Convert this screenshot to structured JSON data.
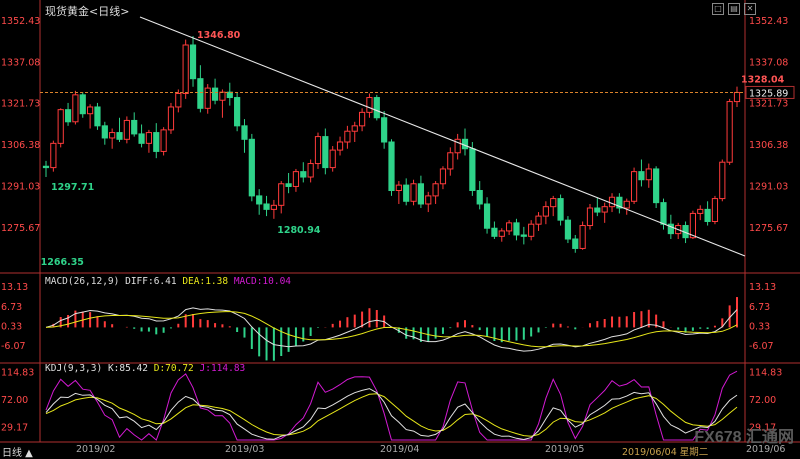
{
  "header": {
    "title": "现货黄金<日线>"
  },
  "colors": {
    "up": "#ff3b3b",
    "down": "#2fd38a",
    "axis": "#ff4a4a",
    "trend": "#e8e8e8",
    "dash": "#d9822b",
    "diff": "#e0e0e0",
    "dea": "#e6e61a",
    "j": "#d21ad2"
  },
  "chart_data": {
    "type": "candlestick",
    "y_ticks": [
      "1352.43",
      "1337.08",
      "1321.73",
      "1306.38",
      "1291.03",
      "1275.67"
    ],
    "ylim": [
      1260.0,
      1355.0
    ],
    "x_labels": [
      "2019/02",
      "2019/03",
      "2019/04",
      "2019/05"
    ],
    "annotations": {
      "high": "1346.80",
      "low_left": "1297.71",
      "low_mid": "1280.94",
      "low_right": "1266.35",
      "last_high": "1328.04",
      "current": "1325.89"
    },
    "candles": [
      [
        1298.5,
        1300.5,
        1294.5,
        1298.0
      ],
      [
        1298.0,
        1308.0,
        1296.5,
        1307.0
      ],
      [
        1307.0,
        1320.0,
        1305.5,
        1319.5
      ],
      [
        1319.5,
        1322.0,
        1313.5,
        1315.0
      ],
      [
        1315.0,
        1326.5,
        1314.0,
        1325.0
      ],
      [
        1325.0,
        1326.0,
        1316.5,
        1318.0
      ],
      [
        1318.0,
        1321.5,
        1312.5,
        1320.5
      ],
      [
        1320.5,
        1322.0,
        1312.0,
        1313.5
      ],
      [
        1313.5,
        1315.0,
        1306.5,
        1309.0
      ],
      [
        1309.0,
        1312.5,
        1305.0,
        1311.0
      ],
      [
        1311.0,
        1316.5,
        1307.5,
        1308.5
      ],
      [
        1308.5,
        1317.0,
        1307.0,
        1315.5
      ],
      [
        1315.5,
        1318.5,
        1309.5,
        1310.5
      ],
      [
        1310.5,
        1314.0,
        1305.5,
        1307.0
      ],
      [
        1307.0,
        1312.0,
        1303.5,
        1311.0
      ],
      [
        1311.0,
        1314.5,
        1301.5,
        1304.0
      ],
      [
        1304.0,
        1313.0,
        1302.5,
        1312.0
      ],
      [
        1312.0,
        1322.0,
        1310.5,
        1320.5
      ],
      [
        1320.5,
        1327.0,
        1318.5,
        1325.5
      ],
      [
        1325.5,
        1345.5,
        1323.5,
        1343.5
      ],
      [
        1343.5,
        1346.8,
        1328.0,
        1331.0
      ],
      [
        1331.0,
        1336.0,
        1318.5,
        1320.0
      ],
      [
        1320.0,
        1329.0,
        1318.0,
        1327.5
      ],
      [
        1327.5,
        1331.0,
        1321.5,
        1323.0
      ],
      [
        1323.0,
        1327.0,
        1316.5,
        1326.0
      ],
      [
        1326.0,
        1329.5,
        1321.0,
        1324.0
      ],
      [
        1324.0,
        1326.0,
        1311.5,
        1313.5
      ],
      [
        1313.5,
        1316.0,
        1303.5,
        1308.5
      ],
      [
        1308.5,
        1310.5,
        1285.5,
        1287.5
      ],
      [
        1287.5,
        1290.0,
        1280.5,
        1284.5
      ],
      [
        1284.5,
        1287.5,
        1280.0,
        1282.5
      ],
      [
        1282.5,
        1286.0,
        1279.0,
        1284.0
      ],
      [
        1284.0,
        1293.0,
        1281.0,
        1292.0
      ],
      [
        1292.0,
        1296.0,
        1288.5,
        1291.0
      ],
      [
        1291.0,
        1297.5,
        1289.0,
        1296.5
      ],
      [
        1296.5,
        1300.0,
        1292.5,
        1294.5
      ],
      [
        1294.5,
        1301.0,
        1292.5,
        1299.5
      ],
      [
        1299.5,
        1311.0,
        1297.5,
        1309.5
      ],
      [
        1309.5,
        1312.5,
        1295.5,
        1298.0
      ],
      [
        1298.0,
        1306.0,
        1296.5,
        1304.5
      ],
      [
        1304.5,
        1309.5,
        1302.5,
        1307.5
      ],
      [
        1307.5,
        1313.5,
        1305.0,
        1311.5
      ],
      [
        1311.5,
        1315.0,
        1307.5,
        1313.5
      ],
      [
        1313.5,
        1320.0,
        1311.5,
        1318.5
      ],
      [
        1318.5,
        1325.5,
        1316.5,
        1324.0
      ],
      [
        1324.0,
        1325.0,
        1315.5,
        1316.5
      ],
      [
        1316.5,
        1319.0,
        1305.0,
        1307.5
      ],
      [
        1307.5,
        1308.5,
        1287.5,
        1289.5
      ],
      [
        1289.5,
        1293.0,
        1284.5,
        1291.5
      ],
      [
        1291.5,
        1294.0,
        1284.0,
        1285.5
      ],
      [
        1285.5,
        1293.5,
        1284.0,
        1292.0
      ],
      [
        1292.0,
        1295.0,
        1283.0,
        1284.5
      ],
      [
        1284.5,
        1289.0,
        1281.5,
        1287.5
      ],
      [
        1287.5,
        1293.0,
        1284.5,
        1292.0
      ],
      [
        1292.0,
        1298.5,
        1290.0,
        1297.5
      ],
      [
        1297.5,
        1305.5,
        1295.0,
        1303.5
      ],
      [
        1303.5,
        1310.5,
        1301.0,
        1308.5
      ],
      [
        1308.5,
        1312.5,
        1302.5,
        1305.0
      ],
      [
        1305.0,
        1307.5,
        1287.5,
        1289.5
      ],
      [
        1289.5,
        1293.0,
        1282.5,
        1284.5
      ],
      [
        1284.5,
        1287.0,
        1273.5,
        1275.5
      ],
      [
        1275.5,
        1278.0,
        1271.5,
        1272.5
      ],
      [
        1272.5,
        1275.5,
        1270.5,
        1274.5
      ],
      [
        1274.5,
        1278.5,
        1273.0,
        1277.5
      ],
      [
        1277.5,
        1279.0,
        1271.0,
        1273.0
      ],
      [
        1273.0,
        1276.0,
        1269.5,
        1272.5
      ],
      [
        1272.5,
        1278.5,
        1271.0,
        1277.0
      ],
      [
        1277.0,
        1281.5,
        1274.5,
        1280.0
      ],
      [
        1280.0,
        1285.5,
        1277.0,
        1283.5
      ],
      [
        1283.5,
        1287.5,
        1280.0,
        1286.5
      ],
      [
        1286.5,
        1288.0,
        1276.5,
        1278.5
      ],
      [
        1278.5,
        1280.0,
        1270.0,
        1271.5
      ],
      [
        1271.5,
        1273.0,
        1266.4,
        1268.0
      ],
      [
        1268.0,
        1278.0,
        1267.5,
        1276.5
      ],
      [
        1276.5,
        1284.5,
        1275.0,
        1283.0
      ],
      [
        1283.0,
        1287.0,
        1280.0,
        1281.5
      ],
      [
        1281.5,
        1285.0,
        1277.5,
        1283.5
      ],
      [
        1283.5,
        1288.5,
        1281.5,
        1287.0
      ],
      [
        1287.0,
        1288.5,
        1281.0,
        1283.0
      ],
      [
        1283.0,
        1286.5,
        1280.5,
        1285.5
      ],
      [
        1285.5,
        1298.0,
        1284.5,
        1296.5
      ],
      [
        1296.5,
        1301.0,
        1291.0,
        1293.5
      ],
      [
        1293.5,
        1299.5,
        1290.5,
        1297.5
      ],
      [
        1297.5,
        1298.5,
        1283.0,
        1285.0
      ],
      [
        1285.0,
        1286.5,
        1275.0,
        1277.0
      ],
      [
        1277.0,
        1280.5,
        1271.5,
        1273.5
      ],
      [
        1273.5,
        1277.5,
        1271.5,
        1276.5
      ],
      [
        1276.5,
        1278.0,
        1270.0,
        1272.0
      ],
      [
        1272.0,
        1282.0,
        1271.5,
        1281.0
      ],
      [
        1281.0,
        1284.0,
        1278.5,
        1282.5
      ],
      [
        1282.5,
        1285.5,
        1276.5,
        1278.0
      ],
      [
        1278.0,
        1287.5,
        1277.0,
        1286.5
      ],
      [
        1286.5,
        1301.0,
        1285.5,
        1300.0
      ],
      [
        1300.0,
        1323.5,
        1299.0,
        1322.5
      ],
      [
        1322.5,
        1328.04,
        1320.5,
        1325.89
      ]
    ],
    "indicators": {
      "macd": {
        "title": "MACD(26,12,9)",
        "diff": "DIFF:6.41",
        "dea": "DEA:1.38",
        "macd": "MACD:10.04",
        "y_ticks": [
          "13.13",
          "6.73",
          "0.33",
          "-6.07"
        ],
        "ylim": [
          -10.0,
          15.5
        ]
      },
      "kdj": {
        "title": "KDJ(9,3,3)",
        "k": "K:85.42",
        "d": "D:70.72",
        "j": "J:114.83",
        "y_ticks": [
          "114.83",
          "72.00",
          "29.17"
        ],
        "ylim": [
          10.0,
          125.0
        ]
      }
    }
  },
  "footer": {
    "period": "日线 ▲",
    "date": "2019/06/04 星期二",
    "last_date": "2019/06",
    "watermark": "FX678 汇通网"
  }
}
